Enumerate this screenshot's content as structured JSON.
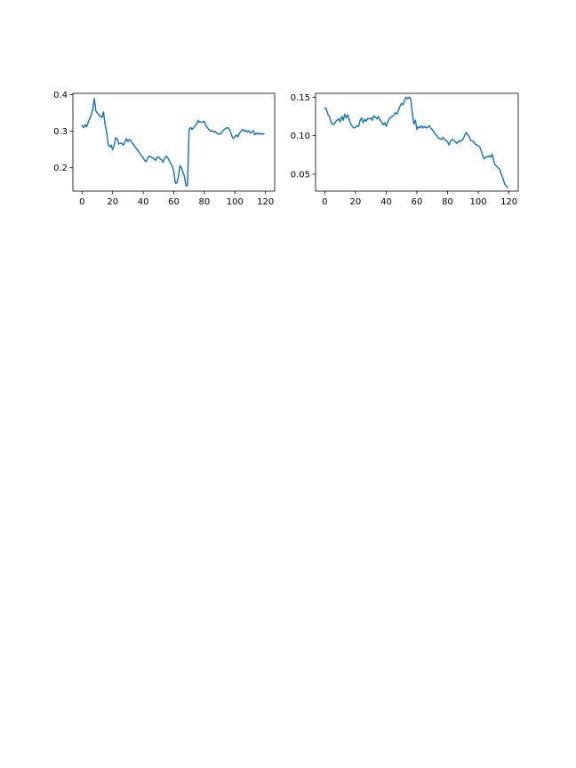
{
  "chart_data": [
    {
      "type": "line",
      "title": "",
      "xlabel": "",
      "ylabel": "",
      "xlim": [
        -6,
        126
      ],
      "ylim": [
        0.136,
        0.404
      ],
      "xticks": [
        0,
        20,
        40,
        60,
        80,
        100,
        120
      ],
      "yticks": [
        0.2,
        0.3,
        0.4
      ],
      "x_tick_labels": [
        "0",
        "20",
        "40",
        "60",
        "80",
        "100",
        "120"
      ],
      "y_tick_labels": [
        "0.2",
        "0.3",
        "0.4"
      ],
      "grid": false,
      "color": "#1f77b4",
      "series": [
        {
          "x": [
            0,
            1,
            2,
            3,
            4,
            5,
            6,
            7,
            8,
            9,
            10,
            11,
            12,
            13,
            14,
            15,
            16,
            17,
            18,
            19,
            20,
            21,
            22,
            23,
            24,
            25,
            26,
            27,
            28,
            29,
            30,
            31,
            32,
            33,
            34,
            35,
            36,
            37,
            38,
            39,
            40,
            41,
            42,
            43,
            44,
            45,
            46,
            47,
            48,
            49,
            50,
            51,
            52,
            53,
            54,
            55,
            56,
            57,
            58,
            59,
            60,
            61,
            62,
            63,
            64,
            65,
            66,
            67,
            68,
            69,
            70,
            71,
            72,
            73,
            74,
            75,
            76,
            77,
            78,
            79,
            80,
            81,
            82,
            83,
            84,
            85,
            86,
            87,
            88,
            89,
            90,
            91,
            92,
            93,
            94,
            95,
            96,
            97,
            98,
            99,
            100,
            101,
            102,
            103,
            104,
            105,
            106,
            107,
            108,
            109,
            110,
            111,
            112,
            113,
            114,
            115,
            116,
            117,
            118,
            119
          ],
          "y": [
            0.316,
            0.31,
            0.318,
            0.312,
            0.325,
            0.335,
            0.345,
            0.36,
            0.39,
            0.356,
            0.35,
            0.345,
            0.34,
            0.338,
            0.353,
            0.32,
            0.3,
            0.265,
            0.258,
            0.262,
            0.25,
            0.262,
            0.282,
            0.28,
            0.265,
            0.268,
            0.267,
            0.262,
            0.27,
            0.28,
            0.272,
            0.278,
            0.273,
            0.267,
            0.262,
            0.255,
            0.25,
            0.245,
            0.238,
            0.232,
            0.227,
            0.22,
            0.217,
            0.227,
            0.232,
            0.23,
            0.227,
            0.225,
            0.22,
            0.228,
            0.23,
            0.225,
            0.222,
            0.215,
            0.225,
            0.232,
            0.227,
            0.22,
            0.21,
            0.205,
            0.19,
            0.158,
            0.158,
            0.175,
            0.205,
            0.2,
            0.188,
            0.175,
            0.15,
            0.152,
            0.305,
            0.31,
            0.305,
            0.31,
            0.315,
            0.32,
            0.33,
            0.325,
            0.325,
            0.325,
            0.328,
            0.315,
            0.31,
            0.305,
            0.3,
            0.302,
            0.298,
            0.3,
            0.295,
            0.293,
            0.292,
            0.295,
            0.3,
            0.305,
            0.308,
            0.31,
            0.308,
            0.3,
            0.287,
            0.28,
            0.285,
            0.29,
            0.285,
            0.295,
            0.3,
            0.305,
            0.3,
            0.303,
            0.298,
            0.302,
            0.295,
            0.298,
            0.302,
            0.29,
            0.295,
            0.292,
            0.295,
            0.293,
            0.292,
            0.293
          ]
        }
      ]
    },
    {
      "type": "line",
      "title": "",
      "xlabel": "",
      "ylabel": "",
      "xlim": [
        -6,
        126
      ],
      "ylim": [
        0.028,
        0.155
      ],
      "xticks": [
        0,
        20,
        40,
        60,
        80,
        100,
        120
      ],
      "yticks": [
        0.05,
        0.1,
        0.15
      ],
      "x_tick_labels": [
        "0",
        "20",
        "40",
        "60",
        "80",
        "100",
        "120"
      ],
      "y_tick_labels": [
        "0.05",
        "0.10",
        "0.15"
      ],
      "grid": false,
      "color": "#1f77b4",
      "series": [
        {
          "x": [
            0,
            1,
            2,
            3,
            4,
            5,
            6,
            7,
            8,
            9,
            10,
            11,
            12,
            13,
            14,
            15,
            16,
            17,
            18,
            19,
            20,
            21,
            22,
            23,
            24,
            25,
            26,
            27,
            28,
            29,
            30,
            31,
            32,
            33,
            34,
            35,
            36,
            37,
            38,
            39,
            40,
            41,
            42,
            43,
            44,
            45,
            46,
            47,
            48,
            49,
            50,
            51,
            52,
            53,
            54,
            55,
            56,
            57,
            58,
            59,
            60,
            61,
            62,
            63,
            64,
            65,
            66,
            67,
            68,
            69,
            70,
            71,
            72,
            73,
            74,
            75,
            76,
            77,
            78,
            79,
            80,
            81,
            82,
            83,
            84,
            85,
            86,
            87,
            88,
            89,
            90,
            91,
            92,
            93,
            94,
            95,
            96,
            97,
            98,
            99,
            100,
            101,
            102,
            103,
            104,
            105,
            106,
            107,
            108,
            109,
            110,
            111,
            112,
            113,
            114,
            115,
            116,
            117,
            118,
            119
          ],
          "y": [
            0.136,
            0.135,
            0.128,
            0.125,
            0.118,
            0.115,
            0.115,
            0.118,
            0.12,
            0.122,
            0.118,
            0.125,
            0.12,
            0.128,
            0.123,
            0.127,
            0.12,
            0.115,
            0.112,
            0.11,
            0.111,
            0.113,
            0.112,
            0.12,
            0.123,
            0.117,
            0.121,
            0.119,
            0.122,
            0.122,
            0.123,
            0.12,
            0.126,
            0.124,
            0.122,
            0.125,
            0.12,
            0.118,
            0.114,
            0.117,
            0.112,
            0.118,
            0.122,
            0.124,
            0.125,
            0.127,
            0.13,
            0.128,
            0.133,
            0.138,
            0.142,
            0.14,
            0.146,
            0.15,
            0.148,
            0.15,
            0.148,
            0.13,
            0.115,
            0.12,
            0.108,
            0.112,
            0.11,
            0.113,
            0.11,
            0.112,
            0.11,
            0.111,
            0.113,
            0.11,
            0.108,
            0.105,
            0.102,
            0.1,
            0.097,
            0.096,
            0.095,
            0.098,
            0.095,
            0.094,
            0.092,
            0.088,
            0.093,
            0.095,
            0.094,
            0.092,
            0.09,
            0.093,
            0.092,
            0.094,
            0.095,
            0.1,
            0.104,
            0.102,
            0.099,
            0.094,
            0.093,
            0.092,
            0.089,
            0.088,
            0.087,
            0.085,
            0.08,
            0.073,
            0.07,
            0.073,
            0.072,
            0.074,
            0.072,
            0.076,
            0.068,
            0.062,
            0.06,
            0.058,
            0.056,
            0.05,
            0.045,
            0.038,
            0.035,
            0.033
          ]
        }
      ]
    }
  ]
}
